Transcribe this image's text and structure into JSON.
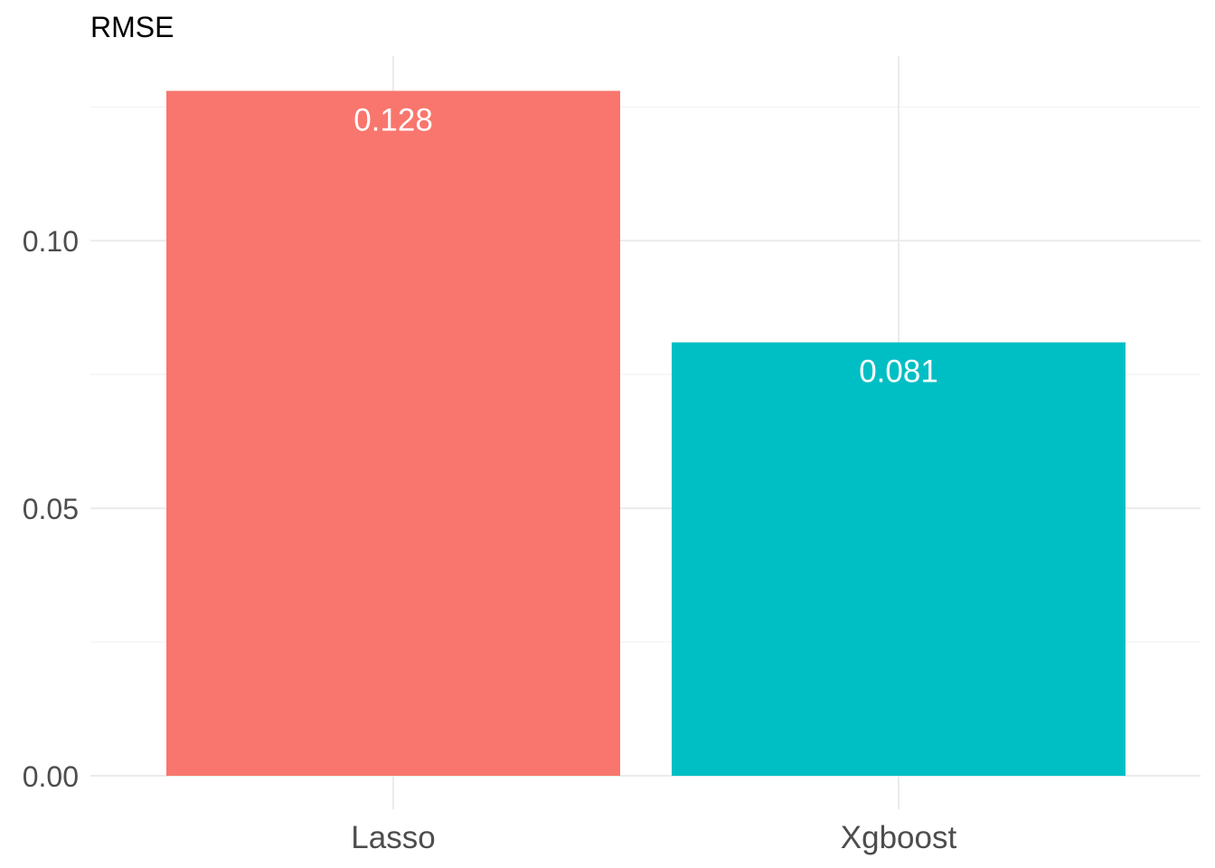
{
  "chart_data": {
    "type": "bar",
    "title": "RMSE",
    "xlabel": "",
    "ylabel": "",
    "categories": [
      "Lasso",
      "Xgboost"
    ],
    "values": [
      0.128,
      0.081
    ],
    "data_labels": [
      "0.128",
      "0.081"
    ],
    "colors": [
      "#F8766D",
      "#00BFC4"
    ],
    "ylim": [
      0,
      0.1345
    ],
    "y_ticks": [
      0.0,
      0.05,
      0.1
    ],
    "y_tick_labels": [
      "0.00",
      "0.05",
      "0.10"
    ],
    "y_minor_ticks": [
      0.025,
      0.075,
      0.125
    ],
    "grid": true,
    "legend": "none"
  }
}
